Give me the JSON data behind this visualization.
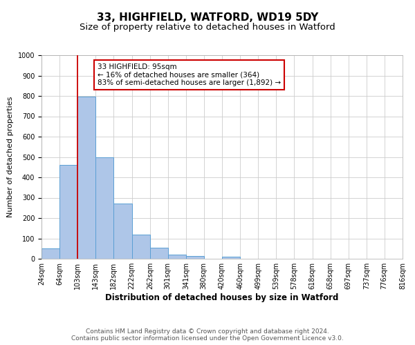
{
  "title": "33, HIGHFIELD, WATFORD, WD19 5DY",
  "subtitle": "Size of property relative to detached houses in Watford",
  "xlabel": "Distribution of detached houses by size in Watford",
  "ylabel": "Number of detached properties",
  "bin_edges": [
    24,
    64,
    103,
    143,
    182,
    222,
    262,
    301,
    341,
    380,
    420,
    460,
    499,
    539,
    578,
    618,
    658,
    697,
    737,
    776,
    816
  ],
  "bin_labels": [
    "24sqm",
    "64sqm",
    "103sqm",
    "143sqm",
    "182sqm",
    "222sqm",
    "262sqm",
    "301sqm",
    "341sqm",
    "380sqm",
    "420sqm",
    "460sqm",
    "499sqm",
    "539sqm",
    "578sqm",
    "618sqm",
    "658sqm",
    "697sqm",
    "737sqm",
    "776sqm",
    "816sqm"
  ],
  "counts": [
    50,
    460,
    795,
    500,
    270,
    120,
    55,
    20,
    15,
    0,
    10,
    0,
    0,
    0,
    0,
    0,
    0,
    0,
    0,
    0
  ],
  "bar_color": "#aec6e8",
  "bar_edge_color": "#5a9fd4",
  "property_line_x": 103,
  "vline_color": "#cc0000",
  "annotation_text": "33 HIGHFIELD: 95sqm\n← 16% of detached houses are smaller (364)\n83% of semi-detached houses are larger (1,892) →",
  "annotation_box_color": "#ffffff",
  "annotation_box_edge_color": "#cc0000",
  "ylim": [
    0,
    1000
  ],
  "yticks": [
    0,
    100,
    200,
    300,
    400,
    500,
    600,
    700,
    800,
    900,
    1000
  ],
  "grid_color": "#cccccc",
  "footer_line1": "Contains HM Land Registry data © Crown copyright and database right 2024.",
  "footer_line2": "Contains public sector information licensed under the Open Government Licence v3.0.",
  "bg_color": "#ffffff",
  "title_fontsize": 11,
  "subtitle_fontsize": 9.5,
  "xlabel_fontsize": 8.5,
  "ylabel_fontsize": 8,
  "tick_fontsize": 7,
  "annotation_fontsize": 7.5,
  "footer_fontsize": 6.5
}
